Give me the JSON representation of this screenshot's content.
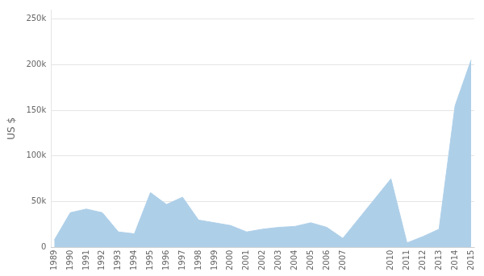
{
  "chart_data": {
    "type": "area",
    "x": [
      1989,
      1990,
      1991,
      1992,
      1993,
      1994,
      1995,
      1996,
      1997,
      1998,
      1999,
      2000,
      2001,
      2002,
      2003,
      2004,
      2005,
      2006,
      2007,
      2010,
      2011,
      2012,
      2013,
      2014,
      2015
    ],
    "values": [
      8000,
      38000,
      42000,
      38000,
      17000,
      15000,
      60000,
      47000,
      55000,
      30000,
      27000,
      24000,
      17000,
      20000,
      22000,
      23000,
      27000,
      22000,
      10000,
      75000,
      5000,
      12000,
      20000,
      155000,
      205000
    ],
    "color": "#aecfe8",
    "ylabel": "US $",
    "xlim": [
      1988.8,
      2015.2
    ],
    "xticks": [
      1989,
      1990,
      1991,
      1992,
      1993,
      1994,
      1995,
      1996,
      1997,
      1998,
      1999,
      2000,
      2001,
      2002,
      2003,
      2004,
      2005,
      2006,
      2007,
      2010,
      2011,
      2012,
      2013,
      2014,
      2015
    ],
    "ylim": [
      0,
      260000
    ],
    "yticks": [
      0,
      {
        "value": 50000,
        "label": "50k"
      },
      {
        "value": 100000,
        "label": "100k"
      },
      {
        "value": 150000,
        "label": "150k"
      },
      {
        "value": 200000,
        "label": "200k"
      },
      {
        "value": 250000,
        "label": "250k"
      }
    ],
    "grid": "y"
  }
}
